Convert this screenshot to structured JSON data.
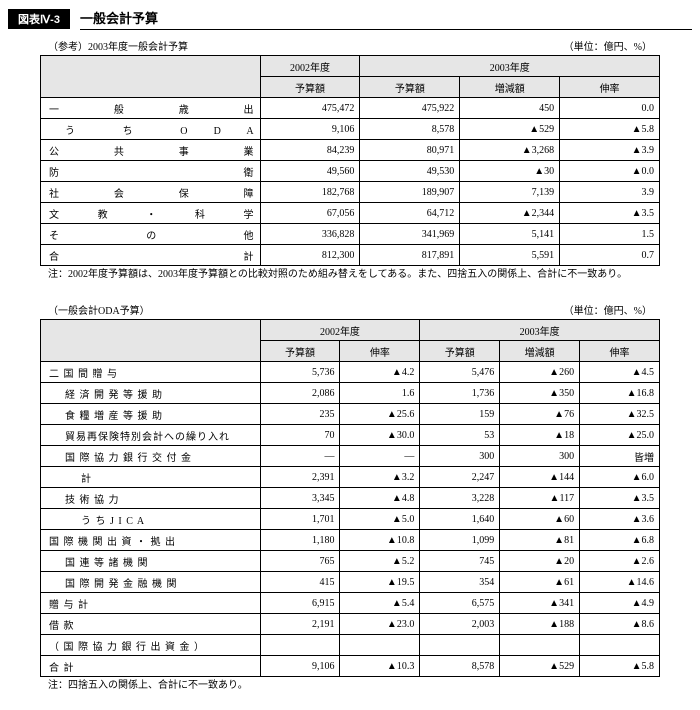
{
  "header": {
    "badge": "図表Ⅳ-3",
    "title": "一般会計予算"
  },
  "table1": {
    "subtitle": "（参考）2003年度一般会計予算",
    "unit": "（単位：億円、%）",
    "col_2002": "2002年度",
    "col_2003": "2003年度",
    "col_budget": "予算額",
    "col_change": "増減額",
    "col_rate": "伸率",
    "rows": [
      {
        "label": "一 般 歳 出",
        "v1": "475,472",
        "v2": "475,922",
        "v3": "450",
        "v4": "0.0"
      },
      {
        "label": "う ち O D A",
        "v1": "9,106",
        "v2": "8,578",
        "v3": "▲529",
        "v4": "▲5.8"
      },
      {
        "label": "公 共 事 業",
        "v1": "84,239",
        "v2": "80,971",
        "v3": "▲3,268",
        "v4": "▲3.9"
      },
      {
        "label": "防 衛",
        "v1": "49,560",
        "v2": "49,530",
        "v3": "▲30",
        "v4": "▲0.0"
      },
      {
        "label": "社 会 保 障",
        "v1": "182,768",
        "v2": "189,907",
        "v3": "7,139",
        "v4": "3.9"
      },
      {
        "label": "文 教 ・ 科 学",
        "v1": "67,056",
        "v2": "64,712",
        "v3": "▲2,344",
        "v4": "▲3.5"
      },
      {
        "label": "そ の 他",
        "v1": "336,828",
        "v2": "341,969",
        "v3": "5,141",
        "v4": "1.5"
      },
      {
        "label": "合 計",
        "v1": "812,300",
        "v2": "817,891",
        "v3": "5,591",
        "v4": "0.7"
      }
    ],
    "note": "注：2002年度予算額は、2003年度予算額との比較対照のため組み替えをしてある。また、四捨五入の関係上、合計に不一致あり。"
  },
  "table2": {
    "subtitle": "（一般会計ODA予算）",
    "unit": "（単位：億円、%）",
    "col_2002": "2002年度",
    "col_2003": "2003年度",
    "col_budget": "予算額",
    "col_rate": "伸率",
    "col_change": "増減額",
    "rows": [
      {
        "indent": 1,
        "label": "二 国 間 贈 与",
        "v1": "5,736",
        "v2": "▲4.2",
        "v3": "5,476",
        "v4": "▲260",
        "v5": "▲4.5"
      },
      {
        "indent": 2,
        "label": "経 済 開 発 等 援 助",
        "v1": "2,086",
        "v2": "1.6",
        "v3": "1,736",
        "v4": "▲350",
        "v5": "▲16.8"
      },
      {
        "indent": 2,
        "label": "食 糧 増 産 等 援 助",
        "v1": "235",
        "v2": "▲25.6",
        "v3": "159",
        "v4": "▲76",
        "v5": "▲32.5"
      },
      {
        "indent": 2,
        "label": "貿易再保険特別会計への繰り入れ",
        "v1": "70",
        "v2": "▲30.0",
        "v3": "53",
        "v4": "▲18",
        "v5": "▲25.0"
      },
      {
        "indent": 2,
        "label": "国 際 協 力 銀 行 交 付 金",
        "v1": "—",
        "v2": "—",
        "v3": "300",
        "v4": "300",
        "v5": "皆増"
      },
      {
        "indent": 3,
        "label": "計",
        "v1": "2,391",
        "v2": "▲3.2",
        "v3": "2,247",
        "v4": "▲144",
        "v5": "▲6.0"
      },
      {
        "indent": 2,
        "label": "技 術 協 力",
        "v1": "3,345",
        "v2": "▲4.8",
        "v3": "3,228",
        "v4": "▲117",
        "v5": "▲3.5"
      },
      {
        "indent": 3,
        "label": "う ち J I C A",
        "v1": "1,701",
        "v2": "▲5.0",
        "v3": "1,640",
        "v4": "▲60",
        "v5": "▲3.6"
      },
      {
        "indent": 1,
        "label": "国 際 機 関 出 資 ・ 拠 出",
        "v1": "1,180",
        "v2": "▲10.8",
        "v3": "1,099",
        "v4": "▲81",
        "v5": "▲6.8"
      },
      {
        "indent": 2,
        "label": "国 連 等 諸 機 関",
        "v1": "765",
        "v2": "▲5.2",
        "v3": "745",
        "v4": "▲20",
        "v5": "▲2.6"
      },
      {
        "indent": 2,
        "label": "国 際 開 発 金 融 機 関",
        "v1": "415",
        "v2": "▲19.5",
        "v3": "354",
        "v4": "▲61",
        "v5": "▲14.6"
      },
      {
        "indent": 1,
        "label": "贈 与 計",
        "v1": "6,915",
        "v2": "▲5.4",
        "v3": "6,575",
        "v4": "▲341",
        "v5": "▲4.9"
      },
      {
        "indent": 1,
        "label": "借 款",
        "v1": "2,191",
        "v2": "▲23.0",
        "v3": "2,003",
        "v4": "▲188",
        "v5": "▲8.6"
      },
      {
        "indent": 1,
        "label": "（ 国 際 協 力 銀 行 出 資 金 ）",
        "v1": "",
        "v2": "",
        "v3": "",
        "v4": "",
        "v5": ""
      },
      {
        "indent": 1,
        "label": "合 計",
        "v1": "9,106",
        "v2": "▲10.3",
        "v3": "8,578",
        "v4": "▲529",
        "v5": "▲5.8"
      }
    ],
    "note": "注：四捨五入の関係上、合計に不一致あり。"
  }
}
